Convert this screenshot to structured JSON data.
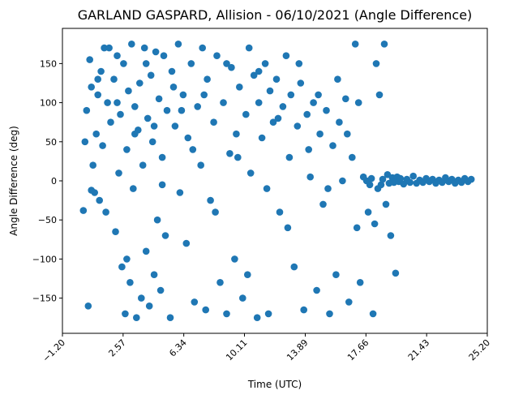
{
  "chart_data": {
    "type": "scatter",
    "title": "GARLAND GASPARD, Allision - 06/10/2021 (Angle Difference)",
    "xlabel": "Time (UTC)",
    "ylabel": "Angle Difference (deg)",
    "xlim": [
      -1.2,
      25.2
    ],
    "ylim": [
      -195,
      195
    ],
    "xticks": [
      -1.2,
      2.57,
      6.34,
      10.11,
      13.89,
      17.66,
      21.43,
      25.2
    ],
    "xtick_labels": [
      "−1.20",
      "2.57",
      "6.34",
      "10.11",
      "13.89",
      "17.66",
      "21.43",
      "25.20"
    ],
    "xtick_rotation": 45,
    "yticks": [
      -150,
      -100,
      -50,
      0,
      50,
      100,
      150
    ],
    "ytick_labels": [
      "−150",
      "−100",
      "−50",
      "0",
      "50",
      "100",
      "150"
    ],
    "grid": false,
    "marker_color": "#1f77b4",
    "points": [
      [
        0.1,
        -38
      ],
      [
        0.4,
        -160
      ],
      [
        0.3,
        90
      ],
      [
        0.5,
        155
      ],
      [
        0.6,
        120
      ],
      [
        0.7,
        20
      ],
      [
        0.8,
        -15
      ],
      [
        0.9,
        60
      ],
      [
        1.0,
        110
      ],
      [
        1.1,
        -25
      ],
      [
        1.2,
        140
      ],
      [
        1.3,
        45
      ],
      [
        1.4,
        170
      ],
      [
        1.5,
        -40
      ],
      [
        1.6,
        100
      ],
      [
        1.8,
        75
      ],
      [
        2.0,
        130
      ],
      [
        2.1,
        -65
      ],
      [
        2.2,
        160
      ],
      [
        2.3,
        10
      ],
      [
        2.4,
        85
      ],
      [
        2.5,
        -110
      ],
      [
        2.6,
        150
      ],
      [
        2.7,
        -170
      ],
      [
        2.8,
        40
      ],
      [
        2.9,
        115
      ],
      [
        3.0,
        -130
      ],
      [
        3.1,
        175
      ],
      [
        3.2,
        -10
      ],
      [
        3.3,
        95
      ],
      [
        3.4,
        -175
      ],
      [
        3.5,
        65
      ],
      [
        3.6,
        125
      ],
      [
        3.7,
        -150
      ],
      [
        3.8,
        20
      ],
      [
        3.9,
        170
      ],
      [
        4.0,
        -90
      ],
      [
        4.1,
        80
      ],
      [
        4.2,
        -160
      ],
      [
        4.3,
        135
      ],
      [
        4.4,
        50
      ],
      [
        4.5,
        -120
      ],
      [
        4.6,
        165
      ],
      [
        4.7,
        -50
      ],
      [
        4.8,
        105
      ],
      [
        4.9,
        -140
      ],
      [
        5.0,
        30
      ],
      [
        5.1,
        160
      ],
      [
        5.2,
        -70
      ],
      [
        5.3,
        90
      ],
      [
        5.5,
        -175
      ],
      [
        5.6,
        140
      ],
      [
        5.8,
        70
      ],
      [
        6.0,
        175
      ],
      [
        6.1,
        -15
      ],
      [
        6.3,
        110
      ],
      [
        6.5,
        -80
      ],
      [
        6.6,
        55
      ],
      [
        6.8,
        150
      ],
      [
        7.0,
        -155
      ],
      [
        7.2,
        95
      ],
      [
        7.4,
        20
      ],
      [
        7.5,
        170
      ],
      [
        7.7,
        -165
      ],
      [
        7.8,
        130
      ],
      [
        8.0,
        -25
      ],
      [
        8.2,
        75
      ],
      [
        8.4,
        160
      ],
      [
        8.6,
        -130
      ],
      [
        8.8,
        100
      ],
      [
        9.0,
        -170
      ],
      [
        9.2,
        35
      ],
      [
        9.3,
        145
      ],
      [
        9.5,
        -100
      ],
      [
        9.6,
        60
      ],
      [
        9.8,
        120
      ],
      [
        10.0,
        -150
      ],
      [
        10.2,
        85
      ],
      [
        10.4,
        170
      ],
      [
        10.5,
        10
      ],
      [
        10.7,
        135
      ],
      [
        10.9,
        -175
      ],
      [
        11.0,
        100
      ],
      [
        11.2,
        55
      ],
      [
        11.4,
        150
      ],
      [
        11.5,
        -10
      ],
      [
        11.7,
        115
      ],
      [
        11.9,
        75
      ],
      [
        12.1,
        130
      ],
      [
        12.3,
        -40
      ],
      [
        12.5,
        95
      ],
      [
        12.7,
        160
      ],
      [
        12.9,
        30
      ],
      [
        13.0,
        110
      ],
      [
        13.2,
        -110
      ],
      [
        13.4,
        70
      ],
      [
        13.6,
        125
      ],
      [
        13.8,
        -165
      ],
      [
        14.0,
        85
      ],
      [
        14.2,
        5
      ],
      [
        14.4,
        100
      ],
      [
        14.6,
        -140
      ],
      [
        14.8,
        60
      ],
      [
        15.0,
        -30
      ],
      [
        15.2,
        90
      ],
      [
        15.4,
        -170
      ],
      [
        15.6,
        45
      ],
      [
        15.8,
        -120
      ],
      [
        16.0,
        75
      ],
      [
        16.2,
        0
      ],
      [
        16.4,
        105
      ],
      [
        16.6,
        -155
      ],
      [
        16.8,
        30
      ],
      [
        17.0,
        175
      ],
      [
        17.1,
        -60
      ],
      [
        17.3,
        -130
      ],
      [
        17.5,
        5
      ],
      [
        17.7,
        0
      ],
      [
        17.9,
        -5
      ],
      [
        18.0,
        3
      ],
      [
        18.1,
        -170
      ],
      [
        18.2,
        -55
      ],
      [
        18.3,
        150
      ],
      [
        18.4,
        -10
      ],
      [
        18.5,
        110
      ],
      [
        18.6,
        -5
      ],
      [
        18.7,
        2
      ],
      [
        18.8,
        175
      ],
      [
        18.9,
        -30
      ],
      [
        19.0,
        8
      ],
      [
        19.1,
        -3
      ],
      [
        19.2,
        -70
      ],
      [
        19.3,
        4
      ],
      [
        19.4,
        -2
      ],
      [
        19.5,
        -118
      ],
      [
        19.6,
        5
      ],
      [
        19.7,
        -1
      ],
      [
        19.8,
        3
      ],
      [
        20.0,
        -4
      ],
      [
        20.2,
        2
      ],
      [
        20.4,
        -2
      ],
      [
        20.6,
        6
      ],
      [
        20.8,
        -3
      ],
      [
        21.0,
        1
      ],
      [
        21.2,
        -2
      ],
      [
        21.4,
        3
      ],
      [
        21.6,
        -1
      ],
      [
        21.8,
        2
      ],
      [
        22.0,
        -3
      ],
      [
        22.2,
        1
      ],
      [
        22.4,
        -2
      ],
      [
        22.6,
        4
      ],
      [
        22.8,
        -1
      ],
      [
        23.0,
        2
      ],
      [
        23.2,
        -3
      ],
      [
        23.4,
        1
      ],
      [
        23.6,
        -2
      ],
      [
        23.8,
        3
      ],
      [
        24.0,
        -1
      ],
      [
        24.2,
        2
      ],
      [
        0.2,
        50
      ],
      [
        0.6,
        -12
      ],
      [
        1.0,
        130
      ],
      [
        1.7,
        170
      ],
      [
        2.2,
        100
      ],
      [
        2.8,
        -100
      ],
      [
        3.3,
        60
      ],
      [
        4.0,
        150
      ],
      [
        4.5,
        70
      ],
      [
        5.0,
        -5
      ],
      [
        5.7,
        120
      ],
      [
        6.2,
        90
      ],
      [
        6.9,
        40
      ],
      [
        7.6,
        110
      ],
      [
        8.3,
        -40
      ],
      [
        9.0,
        150
      ],
      [
        9.7,
        30
      ],
      [
        10.3,
        -120
      ],
      [
        11.0,
        140
      ],
      [
        11.6,
        -170
      ],
      [
        12.2,
        80
      ],
      [
        12.8,
        -60
      ],
      [
        13.5,
        150
      ],
      [
        14.1,
        40
      ],
      [
        14.7,
        110
      ],
      [
        15.3,
        -10
      ],
      [
        15.9,
        130
      ],
      [
        16.5,
        60
      ],
      [
        17.2,
        100
      ],
      [
        17.8,
        -40
      ]
    ]
  }
}
